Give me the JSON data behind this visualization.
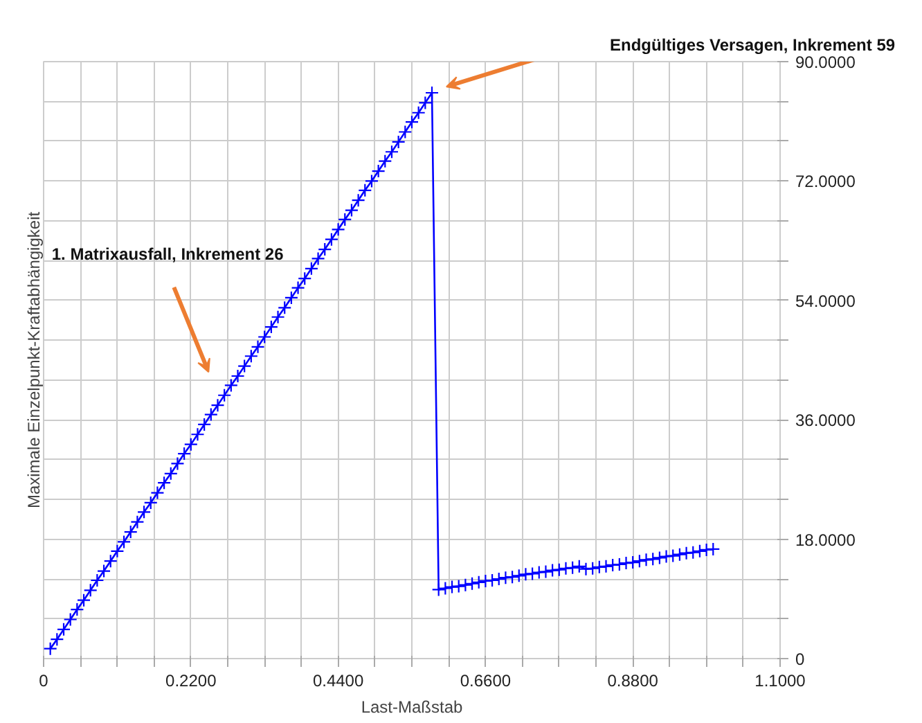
{
  "chart_data": {
    "type": "line",
    "xlabel": "Last-Maßstab",
    "ylabel": "Maximale Einzelpunkt-Kraftabhängigkeit",
    "annotations": [
      "1. Matrixausfall, Inkrement 26",
      "Endgültiges Versagen, Inkrement 59"
    ],
    "xlim": [
      0,
      1.1
    ],
    "ylim": [
      0,
      90
    ],
    "xticks": [
      {
        "value": 0,
        "label": "0"
      },
      {
        "value": 0.055,
        "label": null
      },
      {
        "value": 0.11,
        "label": null
      },
      {
        "value": 0.165,
        "label": null
      },
      {
        "value": 0.22,
        "label": "0.2200"
      },
      {
        "value": 0.275,
        "label": null
      },
      {
        "value": 0.33,
        "label": null
      },
      {
        "value": 0.385,
        "label": null
      },
      {
        "value": 0.44,
        "label": "0.4400"
      },
      {
        "value": 0.495,
        "label": null
      },
      {
        "value": 0.55,
        "label": null
      },
      {
        "value": 0.605,
        "label": null
      },
      {
        "value": 0.66,
        "label": "0.6600"
      },
      {
        "value": 0.715,
        "label": null
      },
      {
        "value": 0.77,
        "label": null
      },
      {
        "value": 0.825,
        "label": null
      },
      {
        "value": 0.88,
        "label": "0.8800"
      },
      {
        "value": 0.935,
        "label": null
      },
      {
        "value": 0.99,
        "label": null
      },
      {
        "value": 1.045,
        "label": null
      },
      {
        "value": 1.1,
        "label": "1.1000"
      }
    ],
    "yticks": [
      {
        "value": 0,
        "label": "0"
      },
      {
        "value": 6,
        "label": null
      },
      {
        "value": 12,
        "label": null
      },
      {
        "value": 18,
        "label": "18.0000"
      },
      {
        "value": 24,
        "label": null
      },
      {
        "value": 30,
        "label": null
      },
      {
        "value": 36,
        "label": "36.0000"
      },
      {
        "value": 42,
        "label": null
      },
      {
        "value": 48,
        "label": null
      },
      {
        "value": 54,
        "label": "54.0000"
      },
      {
        "value": 60,
        "label": null
      },
      {
        "value": 66,
        "label": null
      },
      {
        "value": 72,
        "label": "72.0000"
      },
      {
        "value": 78,
        "label": null
      },
      {
        "value": 84,
        "label": null
      },
      {
        "value": 90,
        "label": "90.0000"
      }
    ],
    "grid": true,
    "marker": "cross",
    "line_style": "solid",
    "series": [
      {
        "color": "#0000ff",
        "x": [
          0.01,
          0.02,
          0.03,
          0.04,
          0.05,
          0.06,
          0.07,
          0.08,
          0.09,
          0.1,
          0.11,
          0.12,
          0.13,
          0.14,
          0.15,
          0.16,
          0.17,
          0.18,
          0.19,
          0.2,
          0.21,
          0.22,
          0.23,
          0.24,
          0.25,
          0.26,
          0.27,
          0.28,
          0.29,
          0.3,
          0.31,
          0.32,
          0.33,
          0.34,
          0.35,
          0.36,
          0.37,
          0.38,
          0.39,
          0.4,
          0.41,
          0.42,
          0.43,
          0.44,
          0.45,
          0.46,
          0.47,
          0.48,
          0.49,
          0.5,
          0.51,
          0.52,
          0.53,
          0.54,
          0.55,
          0.56,
          0.57,
          0.58,
          0.59,
          0.6,
          0.61,
          0.62,
          0.63,
          0.64,
          0.65,
          0.66,
          0.67,
          0.68,
          0.69,
          0.7,
          0.71,
          0.72,
          0.73,
          0.74,
          0.75,
          0.76,
          0.77,
          0.78,
          0.79,
          0.8,
          0.81,
          0.82,
          0.83,
          0.84,
          0.85,
          0.86,
          0.87,
          0.88,
          0.89,
          0.9,
          0.91,
          0.92,
          0.93,
          0.94,
          0.95,
          0.96,
          0.97,
          0.98,
          0.99,
          1.0
        ],
        "values": [
          1.5,
          2.9,
          4.4,
          5.9,
          7.4,
          8.8,
          10.3,
          11.8,
          13.2,
          14.7,
          16.2,
          17.6,
          19.1,
          20.6,
          22.1,
          23.5,
          25.0,
          26.5,
          27.9,
          29.4,
          30.9,
          32.3,
          33.8,
          35.3,
          36.8,
          38.2,
          39.7,
          41.2,
          42.6,
          44.1,
          45.6,
          47.0,
          48.5,
          50.0,
          51.5,
          52.9,
          54.4,
          55.9,
          57.3,
          58.8,
          60.3,
          61.7,
          63.2,
          64.7,
          66.2,
          67.6,
          69.1,
          70.6,
          72.0,
          73.5,
          75.0,
          76.4,
          77.9,
          79.4,
          80.9,
          82.3,
          83.8,
          85.3,
          10.4,
          10.6,
          10.8,
          10.9,
          11.1,
          11.3,
          11.5,
          11.7,
          11.8,
          12.0,
          12.2,
          12.3,
          12.5,
          12.7,
          12.8,
          13.0,
          13.1,
          13.3,
          13.4,
          13.6,
          13.7,
          13.9,
          13.5,
          13.6,
          13.8,
          13.9,
          14.1,
          14.2,
          14.4,
          14.5,
          14.7,
          14.9,
          15.0,
          15.2,
          15.4,
          15.5,
          15.7,
          15.9,
          16.0,
          16.2,
          16.4,
          16.5
        ]
      }
    ]
  }
}
